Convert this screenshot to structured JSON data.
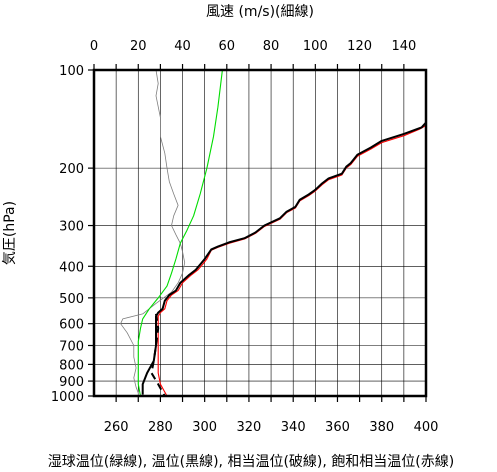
{
  "chart_data": {
    "type": "line",
    "title_top": "風速 (m/s)(細線)",
    "ylabel": "気圧(hPa)",
    "xlabel": "湿球温位(緑線), 温位(黒線), 相当温位(破線), 飽和相当温位(赤線)",
    "y_scale": "log",
    "ylim": [
      1000,
      100
    ],
    "x_temp_lim": [
      250,
      400
    ],
    "x_wind_lim": [
      0,
      150
    ],
    "y_ticks": [
      100,
      200,
      300,
      400,
      500,
      600,
      700,
      800,
      900,
      1000
    ],
    "y_tick_labels": [
      "100",
      "200",
      "300",
      "400",
      "500",
      "600",
      "700",
      "800",
      "900",
      "1000"
    ],
    "x_temp_ticks": [
      260,
      280,
      300,
      320,
      340,
      360,
      380,
      400
    ],
    "x_temp_tick_labels": [
      "260",
      "280",
      "300",
      "320",
      "340",
      "360",
      "380",
      "400"
    ],
    "x_wind_ticks": [
      0,
      20,
      40,
      60,
      80,
      100,
      120,
      140
    ],
    "x_wind_tick_labels": [
      "0",
      "20",
      "40",
      "60",
      "80",
      "100",
      "120",
      "140"
    ],
    "grid": true,
    "series": [
      {
        "key": "wind",
        "axis": "wind",
        "color": "#7f7f7f",
        "style": "thin",
        "points": [
          [
            28,
            100
          ],
          [
            29,
            110
          ],
          [
            28,
            120
          ],
          [
            30,
            140
          ],
          [
            30,
            160
          ],
          [
            32,
            180
          ],
          [
            33,
            200
          ],
          [
            34,
            220
          ],
          [
            36,
            240
          ],
          [
            38,
            260
          ],
          [
            36,
            280
          ],
          [
            35,
            300
          ],
          [
            37,
            320
          ],
          [
            39,
            340
          ],
          [
            40,
            360
          ],
          [
            41,
            390
          ],
          [
            40,
            420
          ],
          [
            38,
            450
          ],
          [
            35,
            480
          ],
          [
            28,
            520
          ],
          [
            22,
            560
          ],
          [
            13,
            580
          ],
          [
            12,
            600
          ],
          [
            15,
            640
          ],
          [
            18,
            700
          ],
          [
            18,
            760
          ],
          [
            19,
            820
          ],
          [
            18,
            880
          ],
          [
            19,
            940
          ],
          [
            20,
            980
          ],
          [
            20,
            1000
          ]
        ]
      },
      {
        "key": "theta_w",
        "axis": "temp",
        "color": "#00dd00",
        "style": "solid",
        "points": [
          [
            308,
            100
          ],
          [
            306,
            130
          ],
          [
            304,
            160
          ],
          [
            301,
            200
          ],
          [
            298,
            240
          ],
          [
            295,
            280
          ],
          [
            292,
            310
          ],
          [
            289,
            340
          ],
          [
            287,
            380
          ],
          [
            285,
            420
          ],
          [
            283,
            460
          ],
          [
            279,
            500
          ],
          [
            275,
            540
          ],
          [
            272,
            580
          ],
          [
            271,
            620
          ],
          [
            270,
            680
          ],
          [
            270,
            760
          ],
          [
            270,
            840
          ],
          [
            270,
            920
          ],
          [
            271,
            1000
          ]
        ]
      },
      {
        "key": "theta",
        "axis": "temp",
        "color": "#000000",
        "style": "solid",
        "points": [
          [
            400,
            145
          ],
          [
            398,
            150
          ],
          [
            390,
            157
          ],
          [
            380,
            165
          ],
          [
            375,
            173
          ],
          [
            369,
            182
          ],
          [
            366,
            193
          ],
          [
            364,
            198
          ],
          [
            362,
            208
          ],
          [
            356,
            215
          ],
          [
            353,
            223
          ],
          [
            350,
            233
          ],
          [
            347,
            241
          ],
          [
            343,
            250
          ],
          [
            341,
            263
          ],
          [
            337,
            272
          ],
          [
            334,
            285
          ],
          [
            327,
            300
          ],
          [
            323,
            315
          ],
          [
            318,
            328
          ],
          [
            311,
            338
          ],
          [
            306,
            348
          ],
          [
            303,
            355
          ],
          [
            300,
            380
          ],
          [
            298,
            395
          ],
          [
            296,
            410
          ],
          [
            293,
            425
          ],
          [
            289,
            450
          ],
          [
            287,
            475
          ],
          [
            284,
            490
          ],
          [
            282,
            510
          ],
          [
            281,
            540
          ],
          [
            279,
            555
          ],
          [
            278,
            570
          ],
          [
            278,
            620
          ],
          [
            278,
            700
          ],
          [
            277,
            780
          ],
          [
            274,
            850
          ],
          [
            272,
            920
          ],
          [
            272,
            990
          ]
        ]
      },
      {
        "key": "theta_e",
        "axis": "temp",
        "color": "#000000",
        "style": "dashed",
        "points": [
          [
            278,
            560
          ],
          [
            279,
            620
          ],
          [
            278,
            700
          ],
          [
            277,
            780
          ],
          [
            276,
            850
          ],
          [
            279,
            920
          ],
          [
            282,
            1000
          ]
        ]
      },
      {
        "key": "theta_es",
        "axis": "temp",
        "color": "#ff0000",
        "style": "solid",
        "points": [
          [
            400,
            148
          ],
          [
            397,
            152
          ],
          [
            390,
            159
          ],
          [
            380,
            167
          ],
          [
            375,
            175
          ],
          [
            369,
            184
          ],
          [
            366,
            195
          ],
          [
            364,
            200
          ],
          [
            362,
            210
          ],
          [
            356,
            217
          ],
          [
            353,
            225
          ],
          [
            350,
            235
          ],
          [
            347,
            243
          ],
          [
            343,
            252
          ],
          [
            341,
            265
          ],
          [
            337,
            274
          ],
          [
            334,
            287
          ],
          [
            327,
            302
          ],
          [
            323,
            317
          ],
          [
            318,
            330
          ],
          [
            311,
            340
          ],
          [
            306,
            350
          ],
          [
            303,
            357
          ],
          [
            301,
            380
          ],
          [
            299,
            395
          ],
          [
            297,
            410
          ],
          [
            294,
            425
          ],
          [
            290,
            450
          ],
          [
            288,
            475
          ],
          [
            285,
            490
          ],
          [
            283,
            510
          ],
          [
            282,
            540
          ],
          [
            280,
            555
          ],
          [
            279,
            570
          ],
          [
            279,
            620
          ],
          [
            279,
            700
          ],
          [
            279,
            780
          ],
          [
            279,
            850
          ],
          [
            280,
            920
          ],
          [
            283,
            1000
          ]
        ]
      }
    ]
  }
}
